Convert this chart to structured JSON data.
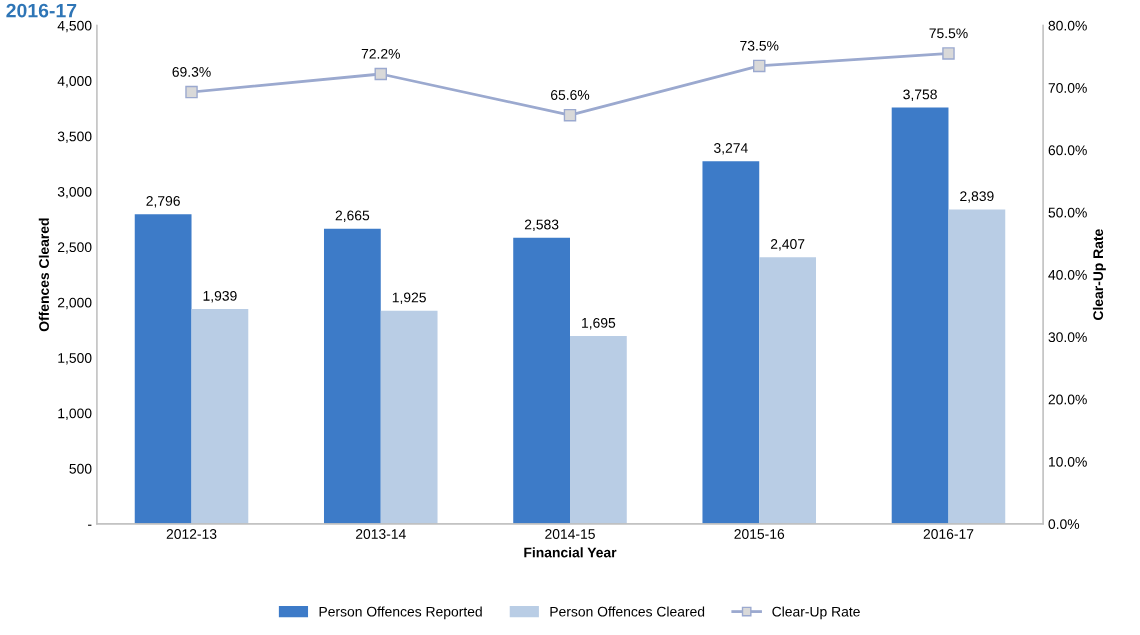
{
  "chart_data": {
    "type": "bar",
    "title": "2016-17",
    "xlabel": "Financial Year",
    "ylabel": "Offences Cleared",
    "y2label": "Clear-Up Rate",
    "categories": [
      "2012-13",
      "2013-14",
      "2014-15",
      "2015-16",
      "2016-17"
    ],
    "series": [
      {
        "name": "Person Offences Reported",
        "color": "#3d7bc8",
        "values": [
          2796,
          2665,
          2583,
          3274,
          3758
        ],
        "value_labels": [
          "2,796",
          "2,665",
          "2,583",
          "3,274",
          "3,758"
        ]
      },
      {
        "name": "Person Offences Cleared",
        "color": "#b9cde5",
        "values": [
          1939,
          1925,
          1695,
          2407,
          2839
        ],
        "value_labels": [
          "1,939",
          "1,925",
          "1,695",
          "2,407",
          "2,839"
        ]
      },
      {
        "name": "Clear-Up Rate",
        "type": "line",
        "axis": "y2",
        "color": "#9ba9cf",
        "marker": "square",
        "values": [
          69.3,
          72.2,
          65.6,
          73.5,
          75.5
        ],
        "value_labels": [
          "69.3%",
          "72.2%",
          "65.6%",
          "73.5%",
          "75.5%"
        ]
      }
    ],
    "ylim": [
      0,
      4500
    ],
    "yticks": [
      {
        "value": 0,
        "label": "-"
      },
      500,
      {
        "value": 1000,
        "label": "1,000"
      },
      {
        "value": 1500,
        "label": "1,500"
      },
      {
        "value": 2000,
        "label": "2,000"
      },
      {
        "value": 2500,
        "label": "2,500"
      },
      {
        "value": 3000,
        "label": "3,000"
      },
      {
        "value": 3500,
        "label": "3,500"
      },
      {
        "value": 4000,
        "label": "4,000"
      },
      {
        "value": 4500,
        "label": "4,500"
      }
    ],
    "y2lim": [
      0,
      80
    ],
    "y2ticks": [
      {
        "value": 0,
        "label": "0.0%"
      },
      {
        "value": 10,
        "label": "10.0%"
      },
      {
        "value": 20,
        "label": "20.0%"
      },
      {
        "value": 30,
        "label": "30.0%"
      },
      {
        "value": 40,
        "label": "40.0%"
      },
      {
        "value": 50,
        "label": "50.0%"
      },
      {
        "value": 60,
        "label": "60.0%"
      },
      {
        "value": 70,
        "label": "70.0%"
      },
      {
        "value": 80,
        "label": "80.0%"
      }
    ],
    "grid": false,
    "legend": "bottom"
  }
}
